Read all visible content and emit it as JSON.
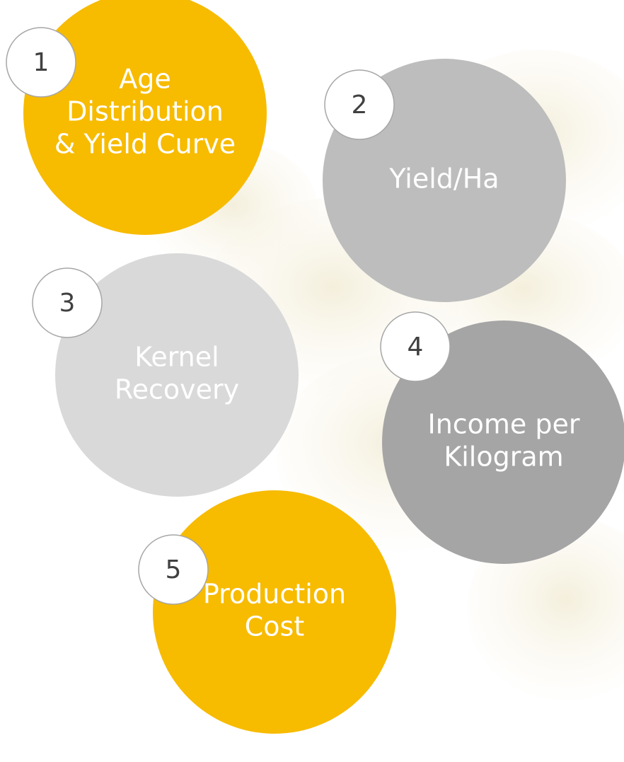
{
  "items": [
    {
      "number": "1",
      "lines": [
        "Age",
        "Distribution",
        "& Yield Curve"
      ]
    },
    {
      "number": "2",
      "lines": [
        "Yield/Ha"
      ]
    },
    {
      "number": "3",
      "lines": [
        "Kernel",
        "Recovery"
      ]
    },
    {
      "number": "4",
      "lines": [
        "Income per",
        "Kilogram"
      ]
    },
    {
      "number": "5",
      "lines": [
        "Production",
        "Cost"
      ]
    }
  ]
}
